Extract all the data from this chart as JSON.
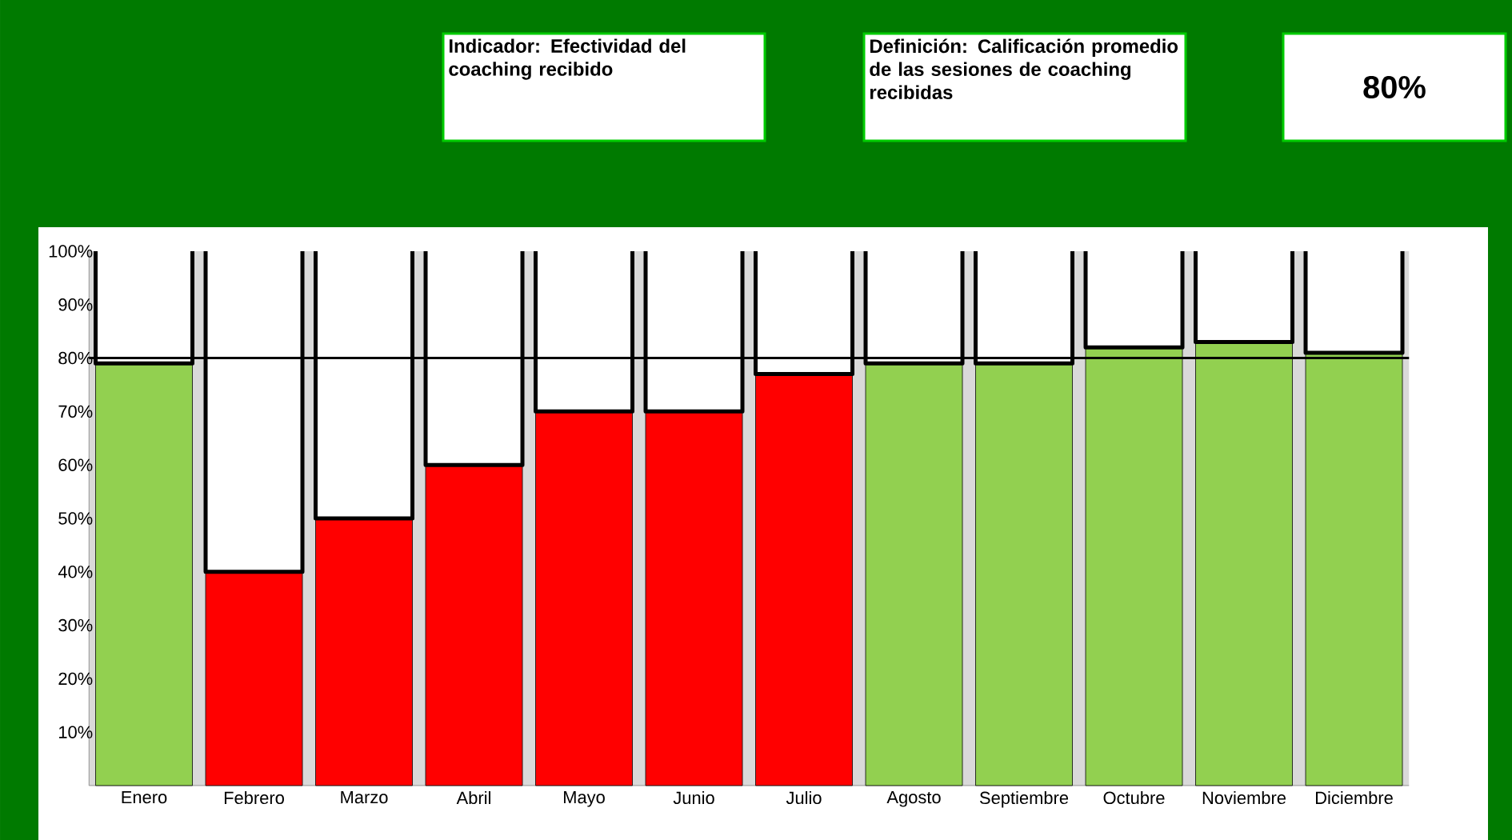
{
  "chart_data": {
    "type": "bar",
    "annotations": [
      "Indicador: Efectividad del coaching recibido",
      "Definición: Calificación promedio de las sesiones de coaching recibidas",
      "80%"
    ],
    "categories": [
      "Enero",
      "Febrero",
      "Marzo",
      "Abril",
      "Mayo",
      "Junio",
      "Julio",
      "Agosto",
      "Septiembre",
      "Octubre",
      "Noviembre",
      "Diciembre"
    ],
    "stacked": true,
    "series": [
      {
        "colors": [
          "#92d050",
          "#ff0000",
          "#ff0000",
          "#ff0000",
          "#ff0000",
          "#ff0000",
          "#ff0000",
          "#92d050",
          "#92d050",
          "#92d050",
          "#92d050",
          "#92d050"
        ],
        "values": [
          79,
          40,
          50,
          60,
          70,
          70,
          77,
          79,
          79,
          82,
          83,
          81
        ]
      },
      {
        "color": "#ffffff",
        "values": [
          21,
          60,
          50,
          40,
          30,
          30,
          23,
          21,
          21,
          18,
          17,
          19
        ]
      }
    ],
    "ylim": [
      0,
      100
    ],
    "yticks": [
      {
        "value": 10,
        "label": "10%"
      },
      {
        "value": 20,
        "label": "20%"
      },
      {
        "value": 30,
        "label": "30%"
      },
      {
        "value": 40,
        "label": "40%"
      },
      {
        "value": 50,
        "label": "50%"
      },
      {
        "value": 60,
        "label": "60%"
      },
      {
        "value": 70,
        "label": "70%"
      },
      {
        "value": 80,
        "label": "80%"
      },
      {
        "value": 90,
        "label": "90%"
      },
      {
        "value": 100,
        "label": "100%"
      }
    ],
    "ref_lines": [
      {
        "axis": "y",
        "value": 80,
        "color": "#000000"
      }
    ],
    "grid": false
  }
}
